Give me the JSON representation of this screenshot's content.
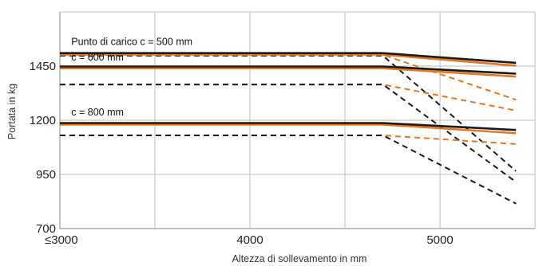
{
  "chart_data": {
    "type": "line",
    "title": "",
    "xlabel": "Altezza di sollevamento in mm",
    "ylabel": "Portata in kg",
    "xlim": [
      3000,
      5500
    ],
    "ylim": [
      700,
      1700
    ],
    "x_ticks": [
      3000,
      4000,
      5000
    ],
    "x_tick_labels": [
      "≤3000",
      "4000",
      "5000"
    ],
    "y_ticks": [
      700,
      950,
      1200,
      1450
    ],
    "y_tick_labels": [
      "700",
      "950",
      "1200",
      "1450"
    ],
    "x_gridlines": [
      3000,
      3500,
      4000,
      4500,
      5000,
      5500
    ],
    "y_gridlines": [
      700,
      950,
      1200,
      1450,
      1700
    ],
    "grid": true,
    "annotations": [
      {
        "text": "Punto di carico c = 500 mm",
        "x": 3060,
        "y": 1547
      },
      {
        "text": "c = 600 mm",
        "x": 3060,
        "y": 1475
      },
      {
        "text": "c = 800 mm",
        "x": 3060,
        "y": 1222
      }
    ],
    "series": [
      {
        "color": "#1a1a1a",
        "style": "solid",
        "x": [
          3000,
          4700,
          5400
        ],
        "y": [
          1510,
          1510,
          1465
        ]
      },
      {
        "color": "#e8761e",
        "style": "solid",
        "x": [
          3000,
          4700,
          5400
        ],
        "y": [
          1503,
          1503,
          1452
        ]
      },
      {
        "color": "#e8761e",
        "style": "dashed",
        "x": [
          3000,
          4700,
          5400
        ],
        "y": [
          1502,
          1502,
          1295
        ]
      },
      {
        "color": "#1a1a1a",
        "style": "dashed",
        "x": [
          3000,
          4700,
          5400
        ],
        "y": [
          1498,
          1498,
          965
        ]
      },
      {
        "color": "#1a1a1a",
        "style": "solid",
        "x": [
          3000,
          4700,
          5400
        ],
        "y": [
          1448,
          1448,
          1415
        ]
      },
      {
        "color": "#e8761e",
        "style": "solid",
        "x": [
          3000,
          4700,
          5400
        ],
        "y": [
          1440,
          1440,
          1402
        ]
      },
      {
        "color": "#e8761e",
        "style": "dashed",
        "x": [
          3000,
          4700,
          5400
        ],
        "y": [
          1365,
          1365,
          1245
        ]
      },
      {
        "color": "#1a1a1a",
        "style": "dashed",
        "x": [
          3000,
          4700,
          5400
        ],
        "y": [
          1365,
          1365,
          915
        ]
      },
      {
        "color": "#1a1a1a",
        "style": "solid",
        "x": [
          3000,
          4700,
          5400
        ],
        "y": [
          1187,
          1187,
          1155
        ]
      },
      {
        "color": "#e8761e",
        "style": "solid",
        "x": [
          3000,
          4700,
          5400
        ],
        "y": [
          1180,
          1180,
          1140
        ]
      },
      {
        "color": "#e8761e",
        "style": "dashed",
        "x": [
          3000,
          4700,
          5400
        ],
        "y": [
          1130,
          1130,
          1090
        ]
      },
      {
        "color": "#1a1a1a",
        "style": "dashed",
        "x": [
          3000,
          4700,
          5400
        ],
        "y": [
          1130,
          1130,
          815
        ]
      }
    ]
  }
}
